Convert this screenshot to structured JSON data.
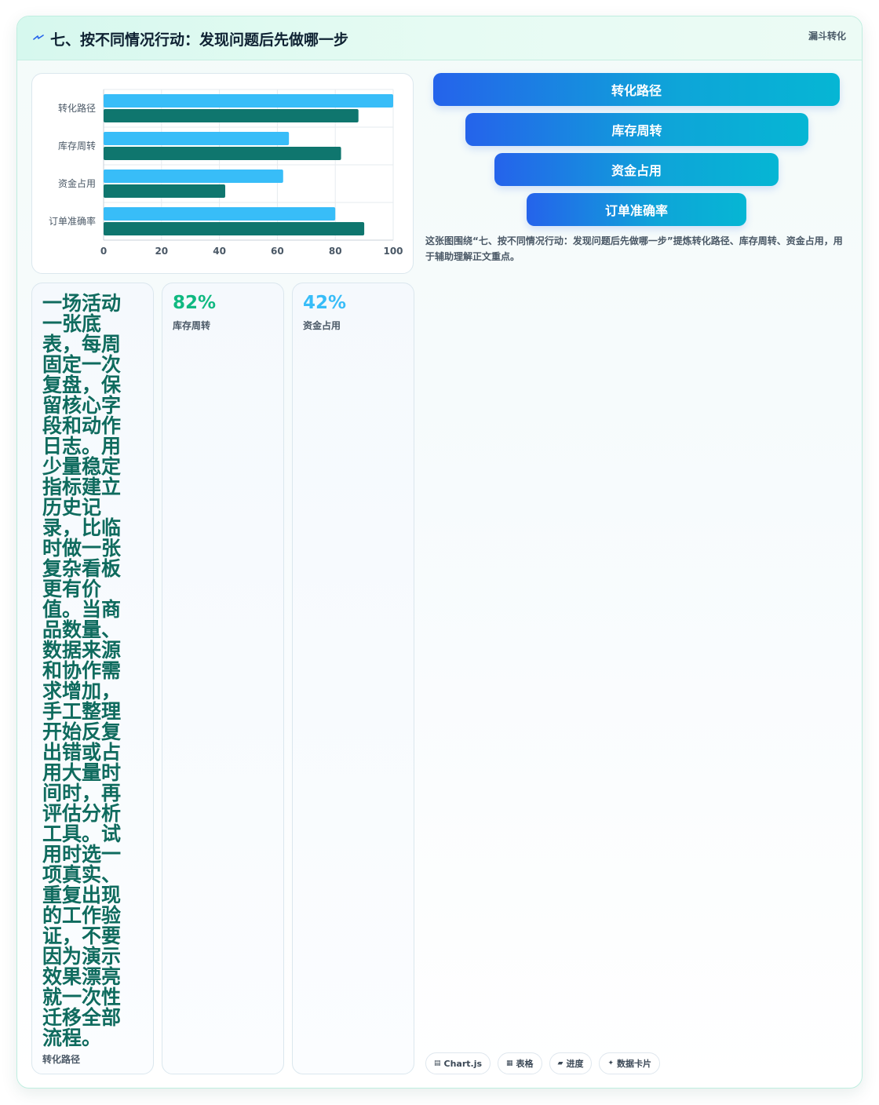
{
  "header": {
    "title": "七、按不同情况行动：发现问题后先做哪一步",
    "tag": "漏斗转化"
  },
  "chart_data": {
    "type": "bar",
    "orientation": "horizontal",
    "categories": [
      "转化路径",
      "库存周转",
      "资金占用",
      "订单准确率"
    ],
    "series": [
      {
        "values": [
          100,
          64,
          62,
          80
        ],
        "color": "#38bdf8"
      },
      {
        "values": [
          88,
          82,
          42,
          90
        ],
        "color": "#0f766e"
      }
    ],
    "xlim": [
      0,
      100
    ],
    "xticks": [
      0,
      20,
      40,
      60,
      80,
      100
    ],
    "grid": true
  },
  "funnel": {
    "items": [
      "转化路径",
      "库存周转",
      "资金占用",
      "订单准确率"
    ]
  },
  "caption": "这张图围绕“七、按不同情况行动：发现问题后先做哪一步”提炼转化路径、库存周转、资金占用，用于辅助理解正文重点。",
  "tiles": [
    {
      "value": "一场活动一张底表，每周固定一次复盘，保留核心字段和动作日志。用少量稳定指标建立历史记录，比临时做一张复杂看板更有价值。当商品数量、数据来源和协作需求增加，手工整理开始反复出错或占用大量时间时，再评估分析工具。试用时选一项真实、重复出现的工作验证，不要因为演示效果漂亮就一次性迁移全部流程。",
      "label": "转化路径"
    },
    {
      "value": "82%",
      "label": "库存周转",
      "color": "#10b981"
    },
    {
      "value": "42%",
      "label": "资金占用",
      "color": "#38bdf8"
    }
  ],
  "chips": [
    {
      "icon": "grid-icon",
      "glyph": "▤",
      "label": "Chart.js"
    },
    {
      "icon": "table-icon",
      "glyph": "▦",
      "label": "表格"
    },
    {
      "icon": "progress-icon",
      "glyph": "▰",
      "label": "进度"
    },
    {
      "icon": "sparkle-icon",
      "glyph": "✦",
      "label": "数据卡片"
    }
  ]
}
